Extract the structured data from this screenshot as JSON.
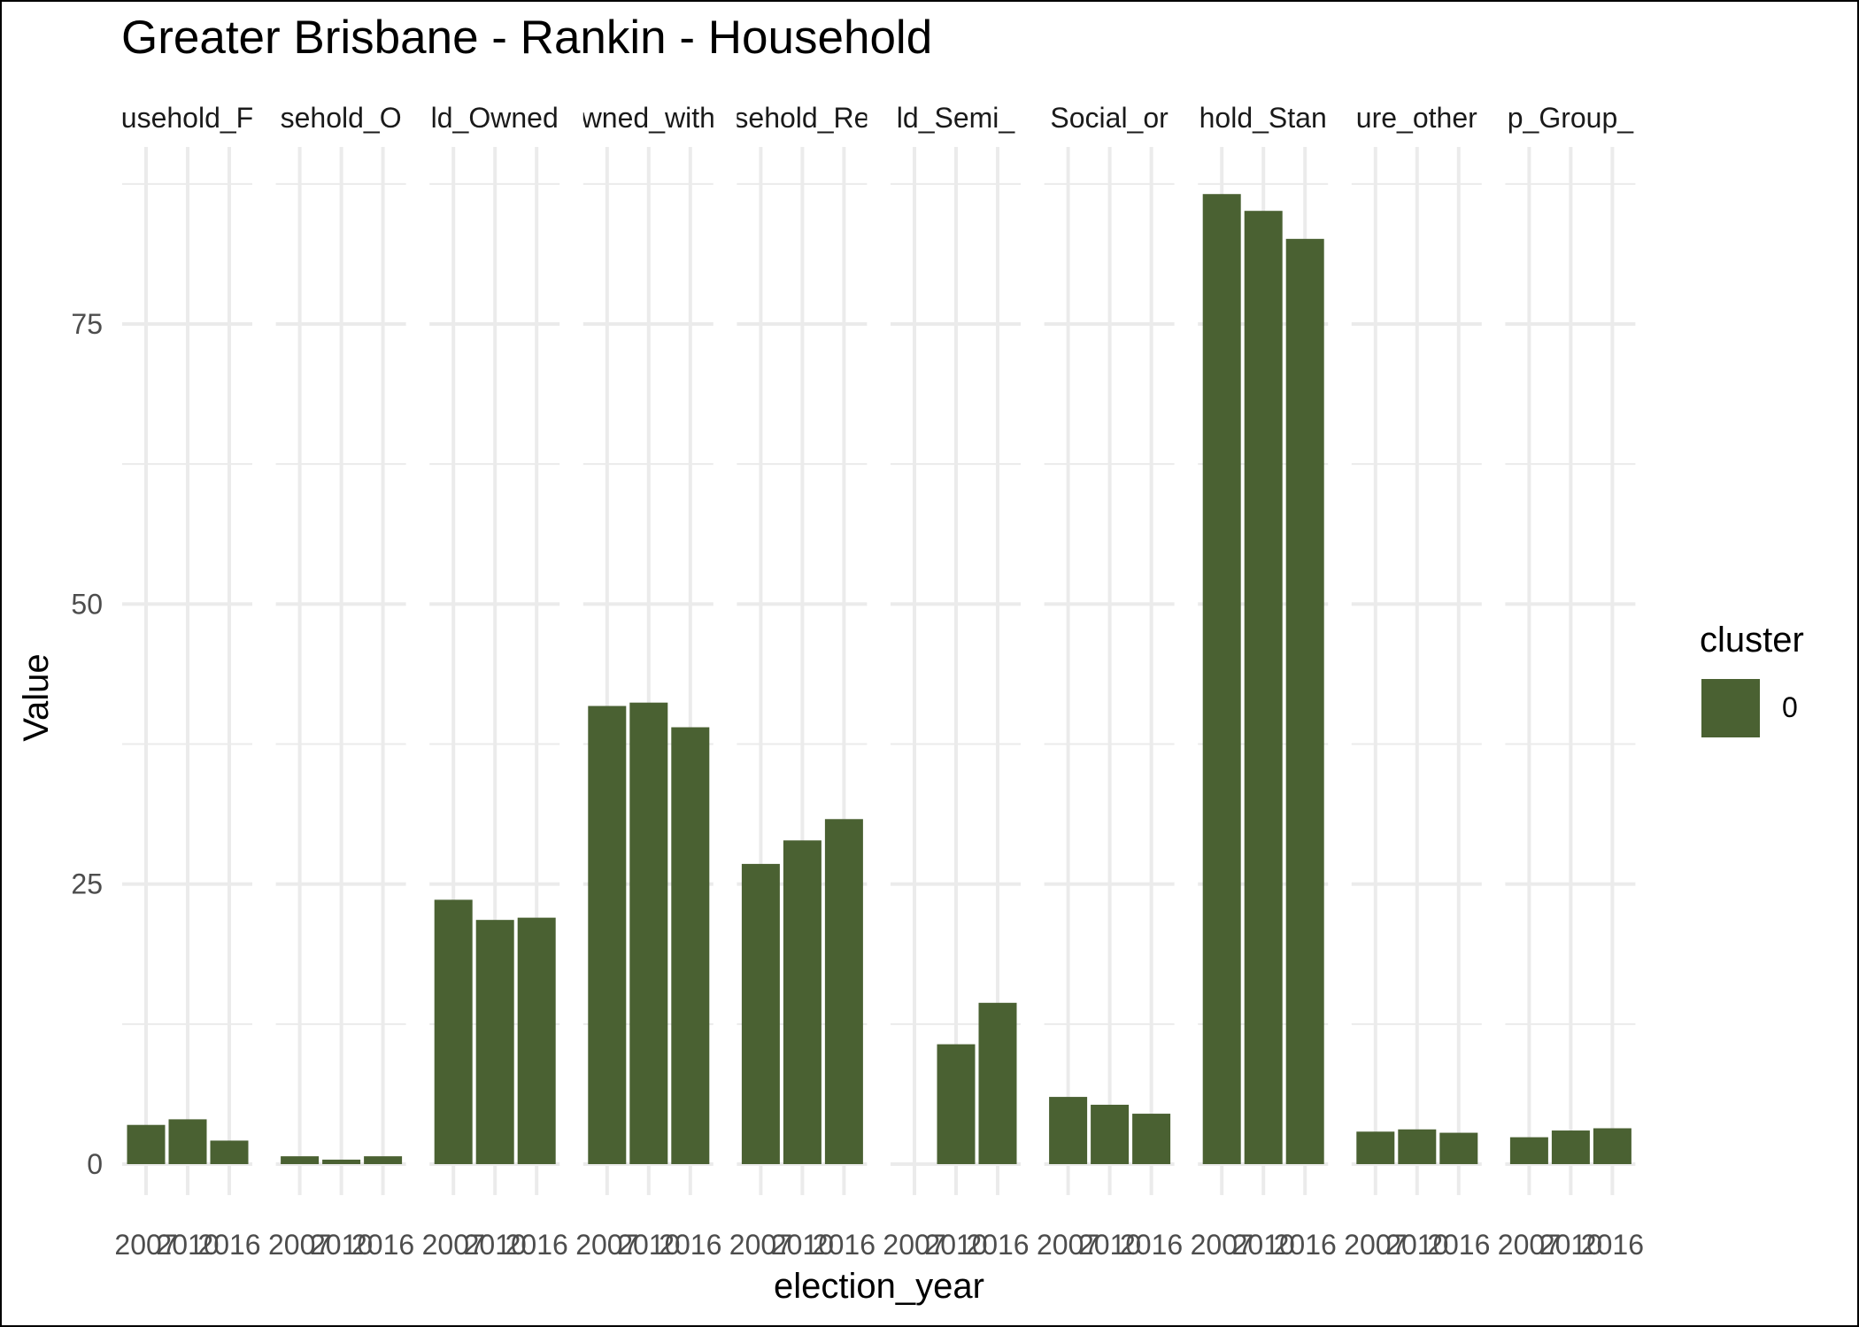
{
  "chart_data": {
    "type": "bar",
    "title": "Greater Brisbane - Rankin - Household",
    "xlabel": "election_year",
    "ylabel": "Value",
    "ylim": [
      0,
      88
    ],
    "yticks": [
      0,
      25,
      50,
      75
    ],
    "grid": true,
    "legend_placement": "right",
    "legend": {
      "title": "cluster",
      "items": [
        {
          "label": "0",
          "color": "#4a6132"
        }
      ]
    },
    "bar_color": "#4a6132",
    "categories": [
      "2007",
      "2010",
      "2016"
    ],
    "panels": [
      {
        "strip": "usehold_F",
        "values": [
          3.5,
          4.0,
          2.1
        ]
      },
      {
        "strip": "sehold_O",
        "values": [
          0.7,
          0.4,
          0.7
        ]
      },
      {
        "strip": "ld_Owned",
        "values": [
          23.6,
          21.8,
          22.0
        ]
      },
      {
        "strip": "wned_with",
        "values": [
          40.9,
          41.2,
          39.0
        ]
      },
      {
        "strip": "sehold_Re",
        "values": [
          26.8,
          28.9,
          30.8
        ]
      },
      {
        "strip": "ld_Semi_",
        "values": [
          null,
          10.7,
          14.4
        ]
      },
      {
        "strip": "Social_or",
        "values": [
          6.0,
          5.3,
          4.5
        ]
      },
      {
        "strip": "hold_Stan",
        "values": [
          86.6,
          85.1,
          82.6
        ]
      },
      {
        "strip": "ure_other",
        "values": [
          2.9,
          3.1,
          2.8
        ]
      },
      {
        "strip": "p_Group_",
        "values": [
          2.4,
          3.0,
          3.2
        ]
      }
    ]
  }
}
